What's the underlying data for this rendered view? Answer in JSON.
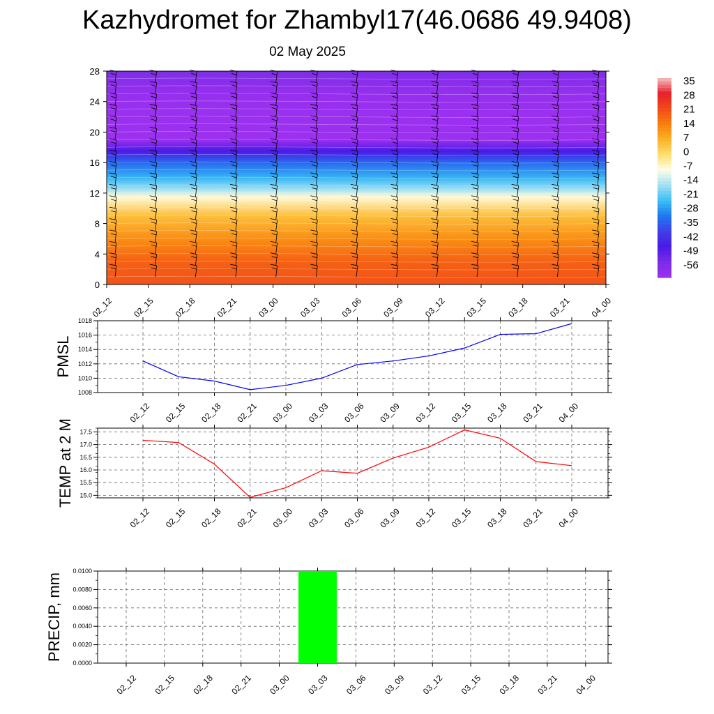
{
  "title": "Kazhydromet for Zhambyl17(46.0686 49.9408)",
  "subtitle": "02 May 2025",
  "chart_data": [
    {
      "type": "heatmap",
      "name": "temperature-cross-section",
      "x_tick_labels": [
        "02_12",
        "02_15",
        "02_18",
        "02_21",
        "03_00",
        "03_03",
        "03_06",
        "03_09",
        "03_12",
        "03_15",
        "03_18",
        "03_21",
        "04_00"
      ],
      "y_ticks": [
        0,
        4,
        8,
        12,
        16,
        20,
        24,
        28
      ],
      "ylim": [
        0,
        28
      ],
      "colorbar": {
        "labels": [
          "35",
          "28",
          "21",
          "14",
          "7",
          "0",
          "-7",
          "-14",
          "-21",
          "-28",
          "-35",
          "-42",
          "-49",
          "-56"
        ],
        "colors": [
          "#f4c2c2",
          "#e8202a",
          "#f24a1a",
          "#f97f0c",
          "#fcb226",
          "#ffe070",
          "#fffde8",
          "#9fe0f4",
          "#39bff5",
          "#1f78f0",
          "#3f3fe8",
          "#4a1ae6",
          "#7a2ce8",
          "#9b30f0"
        ]
      },
      "profile_by_height": [
        {
          "h": 0,
          "value": 20
        },
        {
          "h": 3,
          "value": 18
        },
        {
          "h": 6,
          "value": 12
        },
        {
          "h": 9,
          "value": 5
        },
        {
          "h": 11.5,
          "value": -6
        },
        {
          "h": 12.5,
          "value": -14
        },
        {
          "h": 14,
          "value": -22
        },
        {
          "h": 16,
          "value": -30
        },
        {
          "h": 17.5,
          "value": -42
        },
        {
          "h": 19,
          "value": -56
        },
        {
          "h": 22,
          "value": -58
        },
        {
          "h": 25,
          "value": -55
        },
        {
          "h": 28,
          "value": -50
        }
      ],
      "grid": false
    },
    {
      "type": "line",
      "name": "pmsl",
      "ylabel": "PMSL",
      "x_tick_labels": [
        "02_12",
        "02_15",
        "02_18",
        "02_21",
        "03_00",
        "03_03",
        "03_06",
        "03_09",
        "03_12",
        "03_15",
        "03_18",
        "03_21",
        "04_00"
      ],
      "y_tick_labels": [
        "1008",
        "1010",
        "1012",
        "1014",
        "1016",
        "1018"
      ],
      "ylim": [
        1008,
        1018
      ],
      "series": [
        {
          "color": "#0000ff",
          "values": [
            1012.4,
            1010.2,
            1009.6,
            1008.4,
            1009.0,
            1010.0,
            1011.9,
            1012.4,
            1013.1,
            1014.2,
            1016.1,
            1016.2,
            1017.6
          ]
        }
      ],
      "grid": true
    },
    {
      "type": "line",
      "name": "temp-2m",
      "ylabel": "TEMP at 2 M",
      "x_tick_labels": [
        "02_12",
        "02_15",
        "02_18",
        "02_21",
        "03_00",
        "03_03",
        "03_06",
        "03_09",
        "03_12",
        "03_15",
        "03_18",
        "03_21",
        "04_00"
      ],
      "y_tick_labels": [
        "15.0",
        "15.5",
        "16.0",
        "16.5",
        "17.0",
        "17.5"
      ],
      "ylim": [
        14.9,
        17.65
      ],
      "series": [
        {
          "color": "#ff0000",
          "values": [
            17.17,
            17.08,
            16.23,
            14.92,
            15.3,
            15.97,
            15.87,
            16.47,
            16.9,
            17.58,
            17.25,
            16.33,
            16.17
          ]
        }
      ],
      "grid": true
    },
    {
      "type": "bar",
      "name": "precip",
      "ylabel": "PRECIP, mm",
      "x_tick_labels": [
        "02_12",
        "02_15",
        "02_18",
        "02_21",
        "03_00",
        "03_03",
        "03_06",
        "03_09",
        "03_12",
        "03_15",
        "03_18",
        "03_21",
        "04_00"
      ],
      "y_tick_labels": [
        "0.0000",
        "0.0020",
        "0.0040",
        "0.0060",
        "0.0080",
        "0.0100"
      ],
      "ylim": [
        0,
        0.01
      ],
      "bar_color": "#00ff00",
      "values": [
        0,
        0,
        0,
        0,
        0,
        0.01,
        0,
        0,
        0,
        0,
        0,
        0,
        0
      ],
      "grid": true
    }
  ]
}
